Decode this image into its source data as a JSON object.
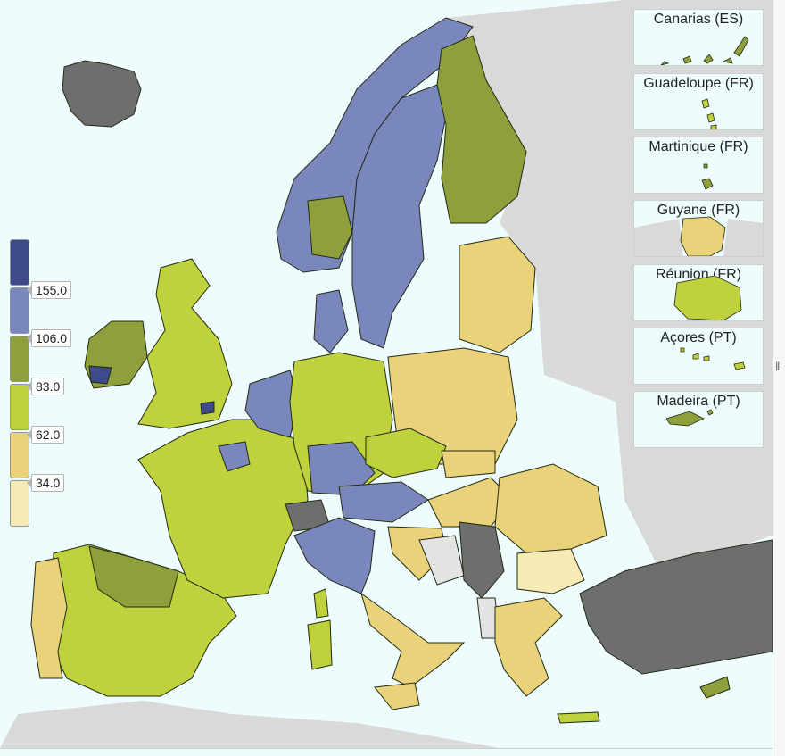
{
  "colors": {
    "sea": "#eefcfd",
    "non_eu": "#d9d9d9",
    "no_data": "#6e6e6e",
    "not_available": "#e3e3e3",
    "border": "#1f2a12"
  },
  "legend": {
    "classes": [
      {
        "color": "#3e4a8a"
      },
      {
        "color": "#7a87bd"
      },
      {
        "color": "#8e9f3c"
      },
      {
        "color": "#bfd13c"
      },
      {
        "color": "#ead27a"
      },
      {
        "color": "#f7ebb5"
      }
    ],
    "ticks": [
      "155.0",
      "106.0",
      "83.0",
      "62.0",
      "34.0"
    ]
  },
  "insets": [
    {
      "id": "canarias",
      "label": "Canarias (ES)",
      "fill_class": 2
    },
    {
      "id": "guadeloupe",
      "label": "Guadeloupe (FR)",
      "fill_class": 3
    },
    {
      "id": "martinique",
      "label": "Martinique (FR)",
      "fill_class": 2
    },
    {
      "id": "guyane",
      "label": "Guyane (FR)",
      "fill_class": 4
    },
    {
      "id": "reunion",
      "label": "Réunion (FR)",
      "fill_class": 3
    },
    {
      "id": "acores",
      "label": "Açores (PT)",
      "fill_class": 3
    },
    {
      "id": "madeira",
      "label": "Madeira (PT)",
      "fill_class": 2
    }
  ],
  "handle_icon": "vertical-bars-icon"
}
